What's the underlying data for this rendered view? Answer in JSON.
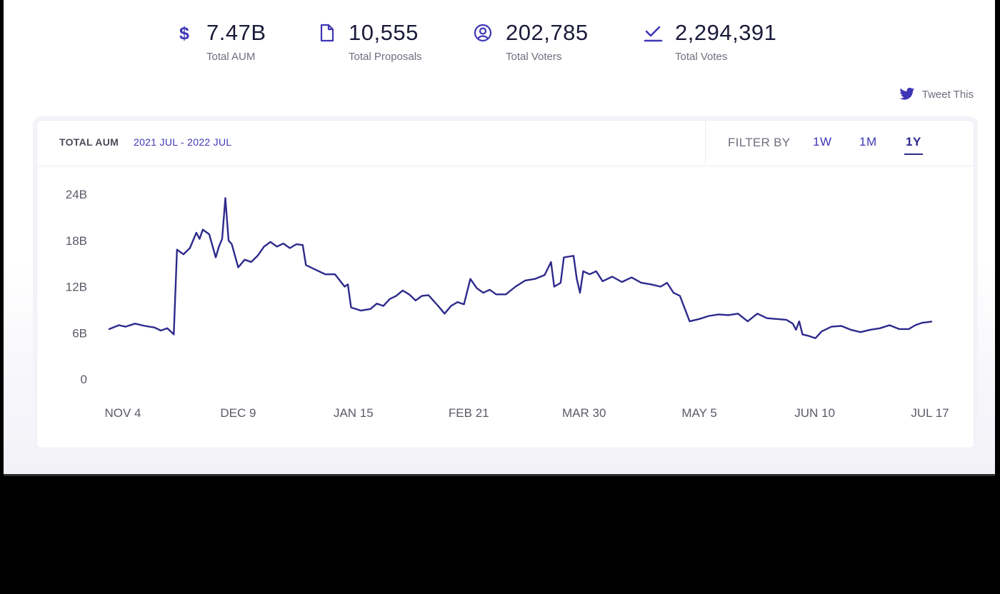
{
  "stats": [
    {
      "icon": "dollar-icon",
      "value": "7.47B",
      "label": "Total AUM"
    },
    {
      "icon": "document-icon",
      "value": "10,555",
      "label": "Total Proposals"
    },
    {
      "icon": "user-circle-icon",
      "value": "202,785",
      "label": "Total Voters"
    },
    {
      "icon": "check-icon",
      "value": "2,294,391",
      "label": "Total Votes"
    }
  ],
  "tweet": {
    "icon": "twitter-icon",
    "label": "Tweet This"
  },
  "card": {
    "title": "TOTAL AUM",
    "range": "2021 JUL - 2022 JUL",
    "filter_label": "FILTER BY",
    "filters": [
      "1W",
      "1M",
      "1Y"
    ],
    "active_filter": "1Y"
  },
  "colors": {
    "accent": "#3f36b5",
    "line": "#2e2a8c",
    "text": "#1b1b3a",
    "muted": "#6e6e7e"
  },
  "chart_data": {
    "type": "line",
    "title": "",
    "xlabel": "",
    "ylabel": "",
    "x_ticks": [
      "NOV 4",
      "DEC 9",
      "JAN 15",
      "FEB 21",
      "MAR 30",
      "MAY 5",
      "JUN 10",
      "JUL 17"
    ],
    "y_ticks": [
      "0",
      "6B",
      "12B",
      "18B",
      "24B"
    ],
    "ylim": [
      0,
      24
    ],
    "y_unit": "B",
    "grid": false,
    "legend": "none",
    "series": [
      {
        "points": [
          [
            "2021-11-04",
            6.5
          ],
          [
            "2021-11-07",
            7.0
          ],
          [
            "2021-11-09",
            6.8
          ],
          [
            "2021-11-12",
            7.2
          ],
          [
            "2021-11-15",
            6.9
          ],
          [
            "2021-11-18",
            6.7
          ],
          [
            "2021-11-20",
            6.3
          ],
          [
            "2021-11-22",
            6.6
          ],
          [
            "2021-11-24",
            5.8
          ],
          [
            "2021-11-25",
            16.8
          ],
          [
            "2021-11-27",
            16.2
          ],
          [
            "2021-11-29",
            17.0
          ],
          [
            "2021-12-01",
            19.0
          ],
          [
            "2021-12-02",
            18.2
          ],
          [
            "2021-12-03",
            19.4
          ],
          [
            "2021-12-05",
            18.8
          ],
          [
            "2021-12-07",
            15.8
          ],
          [
            "2021-12-08",
            17.2
          ],
          [
            "2021-12-09",
            18.2
          ],
          [
            "2021-12-10",
            23.5
          ],
          [
            "2021-12-11",
            18.0
          ],
          [
            "2021-12-12",
            17.5
          ],
          [
            "2021-12-14",
            14.5
          ],
          [
            "2021-12-16",
            15.5
          ],
          [
            "2021-12-18",
            15.2
          ],
          [
            "2021-12-20",
            16.0
          ],
          [
            "2021-12-22",
            17.2
          ],
          [
            "2021-12-24",
            17.8
          ],
          [
            "2021-12-26",
            17.2
          ],
          [
            "2021-12-28",
            17.6
          ],
          [
            "2021-12-30",
            17.0
          ],
          [
            "2022-01-01",
            17.5
          ],
          [
            "2022-01-03",
            17.4
          ],
          [
            "2022-01-04",
            14.8
          ],
          [
            "2022-01-07",
            14.2
          ],
          [
            "2022-01-10",
            13.6
          ],
          [
            "2022-01-13",
            13.6
          ],
          [
            "2022-01-16",
            12.0
          ],
          [
            "2022-01-17",
            12.3
          ],
          [
            "2022-01-18",
            9.3
          ],
          [
            "2022-01-21",
            8.9
          ],
          [
            "2022-01-24",
            9.1
          ],
          [
            "2022-01-26",
            9.8
          ],
          [
            "2022-01-28",
            9.5
          ],
          [
            "2022-01-30",
            10.4
          ],
          [
            "2022-02-01",
            10.8
          ],
          [
            "2022-02-03",
            11.5
          ],
          [
            "2022-02-05",
            11.0
          ],
          [
            "2022-02-07",
            10.2
          ],
          [
            "2022-02-09",
            10.8
          ],
          [
            "2022-02-11",
            10.9
          ],
          [
            "2022-02-14",
            9.5
          ],
          [
            "2022-02-16",
            8.5
          ],
          [
            "2022-02-18",
            9.5
          ],
          [
            "2022-02-20",
            10.0
          ],
          [
            "2022-02-22",
            9.7
          ],
          [
            "2022-02-24",
            13.0
          ],
          [
            "2022-02-26",
            11.8
          ],
          [
            "2022-02-28",
            11.2
          ],
          [
            "2022-03-02",
            11.6
          ],
          [
            "2022-03-04",
            11.0
          ],
          [
            "2022-03-07",
            11.0
          ],
          [
            "2022-03-10",
            12.0
          ],
          [
            "2022-03-13",
            12.8
          ],
          [
            "2022-03-16",
            13.0
          ],
          [
            "2022-03-19",
            13.5
          ],
          [
            "2022-03-21",
            15.2
          ],
          [
            "2022-03-22",
            12.0
          ],
          [
            "2022-03-24",
            12.5
          ],
          [
            "2022-03-25",
            15.8
          ],
          [
            "2022-03-28",
            16.0
          ],
          [
            "2022-03-29",
            13.0
          ],
          [
            "2022-03-30",
            11.2
          ],
          [
            "2022-03-31",
            14.0
          ],
          [
            "2022-04-02",
            13.6
          ],
          [
            "2022-04-04",
            14.0
          ],
          [
            "2022-04-06",
            12.7
          ],
          [
            "2022-04-09",
            13.3
          ],
          [
            "2022-04-12",
            12.6
          ],
          [
            "2022-04-15",
            13.2
          ],
          [
            "2022-04-18",
            12.5
          ],
          [
            "2022-04-21",
            12.3
          ],
          [
            "2022-04-24",
            12.0
          ],
          [
            "2022-04-26",
            12.5
          ],
          [
            "2022-04-28",
            11.2
          ],
          [
            "2022-04-30",
            10.8
          ],
          [
            "2022-05-03",
            7.5
          ],
          [
            "2022-05-06",
            7.8
          ],
          [
            "2022-05-09",
            8.2
          ],
          [
            "2022-05-12",
            8.4
          ],
          [
            "2022-05-15",
            8.3
          ],
          [
            "2022-05-18",
            8.5
          ],
          [
            "2022-05-21",
            7.5
          ],
          [
            "2022-05-24",
            8.5
          ],
          [
            "2022-05-27",
            7.9
          ],
          [
            "2022-05-30",
            7.8
          ],
          [
            "2022-06-02",
            7.7
          ],
          [
            "2022-06-04",
            7.2
          ],
          [
            "2022-06-05",
            6.4
          ],
          [
            "2022-06-06",
            7.5
          ],
          [
            "2022-06-07",
            5.8
          ],
          [
            "2022-06-09",
            5.6
          ],
          [
            "2022-06-11",
            5.3
          ],
          [
            "2022-06-13",
            6.2
          ],
          [
            "2022-06-16",
            6.8
          ],
          [
            "2022-06-19",
            6.9
          ],
          [
            "2022-06-22",
            6.4
          ],
          [
            "2022-06-25",
            6.1
          ],
          [
            "2022-06-28",
            6.4
          ],
          [
            "2022-07-01",
            6.6
          ],
          [
            "2022-07-04",
            7.0
          ],
          [
            "2022-07-07",
            6.5
          ],
          [
            "2022-07-10",
            6.5
          ],
          [
            "2022-07-12",
            7.0
          ],
          [
            "2022-07-14",
            7.3
          ],
          [
            "2022-07-16",
            7.4
          ],
          [
            "2022-07-17",
            7.47
          ]
        ]
      }
    ]
  }
}
